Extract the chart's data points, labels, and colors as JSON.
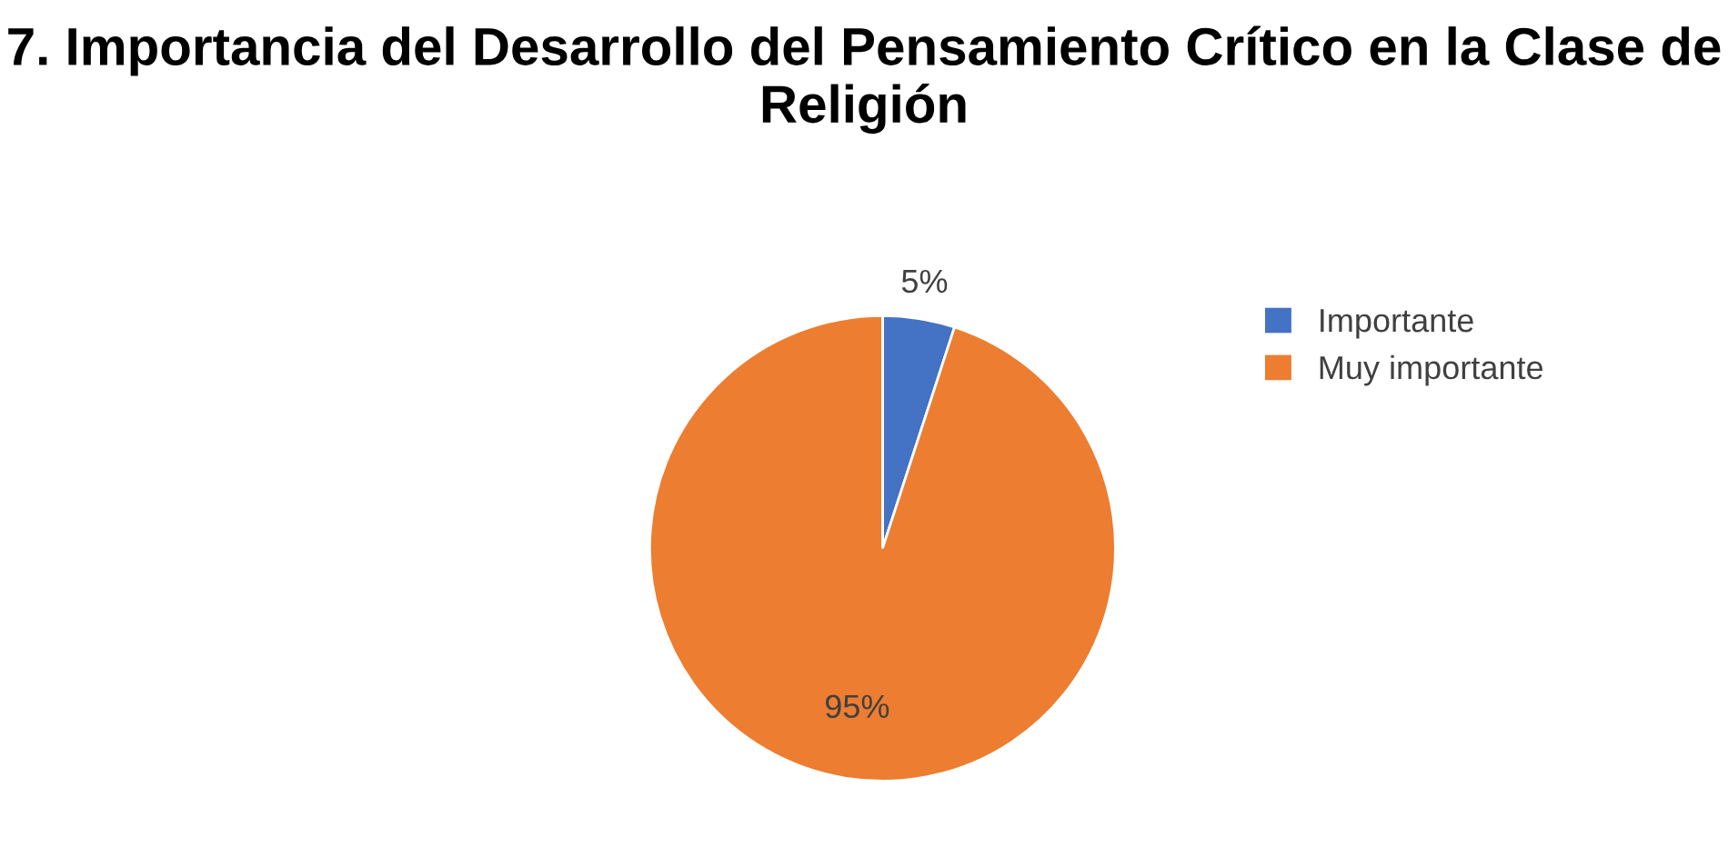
{
  "chart_data": {
    "type": "pie",
    "title": "7. Importancia del Desarrollo del Pensamiento Crítico en la Clase de Religión",
    "categories": [
      "Importante",
      "Muy importante"
    ],
    "values": [
      5,
      95
    ],
    "colors": [
      "#4472c4",
      "#ed7d31"
    ],
    "value_labels": [
      "5%",
      "95%"
    ],
    "legend": "right"
  }
}
